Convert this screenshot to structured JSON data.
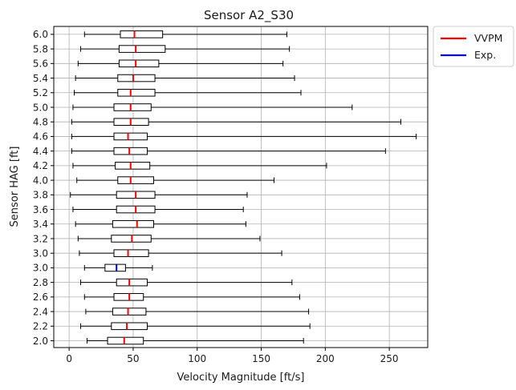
{
  "chart_data": {
    "type": "boxplot",
    "orientation": "horizontal",
    "title": "Sensor A2_S30",
    "xlabel": "Velocity Magnitude [ft/s]",
    "ylabel": "Sensor HAG [ft]",
    "xlim": [
      -12,
      280
    ],
    "xticks": [
      0,
      50,
      100,
      150,
      200,
      250
    ],
    "grid": true,
    "legend_position": "outside-top-right",
    "series": [
      {
        "name": "VVPM",
        "color": "#ff0000"
      },
      {
        "name": "Exp.",
        "color": "#0000cc"
      }
    ],
    "categories": [
      "2.0",
      "2.2",
      "2.4",
      "2.6",
      "2.8",
      "3.0",
      "3.0",
      "3.2",
      "3.4",
      "3.6",
      "3.8",
      "4.0",
      "4.2",
      "4.4",
      "4.6",
      "4.8",
      "5.0",
      "5.2",
      "5.4",
      "5.6",
      "5.8",
      "6.0"
    ],
    "boxes": [
      {
        "label": "2.0",
        "series": "VVPM",
        "whislo": 14,
        "q1": 30,
        "med": 43,
        "q3": 58,
        "whishi": 183
      },
      {
        "label": "2.2",
        "series": "VVPM",
        "whislo": 9,
        "q1": 33,
        "med": 45,
        "q3": 61,
        "whishi": 188
      },
      {
        "label": "2.4",
        "series": "VVPM",
        "whislo": 13,
        "q1": 34,
        "med": 46,
        "q3": 60,
        "whishi": 187
      },
      {
        "label": "2.6",
        "series": "VVPM",
        "whislo": 12,
        "q1": 35,
        "med": 47,
        "q3": 58,
        "whishi": 180
      },
      {
        "label": "2.8",
        "series": "VVPM",
        "whislo": 9,
        "q1": 37,
        "med": 47,
        "q3": 61,
        "whishi": 174
      },
      {
        "label": "3.0",
        "series": "Exp.",
        "whislo": 12,
        "q1": 28,
        "med": 37,
        "q3": 44,
        "whishi": 65
      },
      {
        "label": "3.0",
        "series": "VVPM",
        "whislo": 8,
        "q1": 35,
        "med": 46,
        "q3": 62,
        "whishi": 166
      },
      {
        "label": "3.2",
        "series": "VVPM",
        "whislo": 7,
        "q1": 33,
        "med": 49,
        "q3": 64,
        "whishi": 149
      },
      {
        "label": "3.4",
        "series": "VVPM",
        "whislo": 5,
        "q1": 34,
        "med": 53,
        "q3": 66,
        "whishi": 138
      },
      {
        "label": "3.6",
        "series": "VVPM",
        "whislo": 3,
        "q1": 37,
        "med": 52,
        "q3": 67,
        "whishi": 136
      },
      {
        "label": "3.8",
        "series": "VVPM",
        "whislo": 1,
        "q1": 37,
        "med": 52,
        "q3": 67,
        "whishi": 139
      },
      {
        "label": "4.0",
        "series": "VVPM",
        "whislo": 6,
        "q1": 38,
        "med": 48,
        "q3": 66,
        "whishi": 160
      },
      {
        "label": "4.2",
        "series": "VVPM",
        "whislo": 3,
        "q1": 36,
        "med": 48,
        "q3": 63,
        "whishi": 201
      },
      {
        "label": "4.4",
        "series": "VVPM",
        "whislo": 2,
        "q1": 35,
        "med": 47,
        "q3": 61,
        "whishi": 247
      },
      {
        "label": "4.6",
        "series": "VVPM",
        "whislo": 2,
        "q1": 35,
        "med": 46,
        "q3": 61,
        "whishi": 271
      },
      {
        "label": "4.8",
        "series": "VVPM",
        "whislo": 2,
        "q1": 35,
        "med": 48,
        "q3": 62,
        "whishi": 259
      },
      {
        "label": "5.0",
        "series": "VVPM",
        "whislo": 3,
        "q1": 35,
        "med": 48,
        "q3": 64,
        "whishi": 221
      },
      {
        "label": "5.2",
        "series": "VVPM",
        "whislo": 4,
        "q1": 38,
        "med": 48,
        "q3": 67,
        "whishi": 181
      },
      {
        "label": "5.4",
        "series": "VVPM",
        "whislo": 5,
        "q1": 38,
        "med": 50,
        "q3": 67,
        "whishi": 176
      },
      {
        "label": "5.6",
        "series": "VVPM",
        "whislo": 7,
        "q1": 39,
        "med": 52,
        "q3": 70,
        "whishi": 167
      },
      {
        "label": "5.8",
        "series": "VVPM",
        "whislo": 9,
        "q1": 39,
        "med": 52,
        "q3": 75,
        "whishi": 172
      },
      {
        "label": "6.0",
        "series": "VVPM",
        "whislo": 12,
        "q1": 40,
        "med": 51,
        "q3": 73,
        "whishi": 170
      }
    ]
  }
}
